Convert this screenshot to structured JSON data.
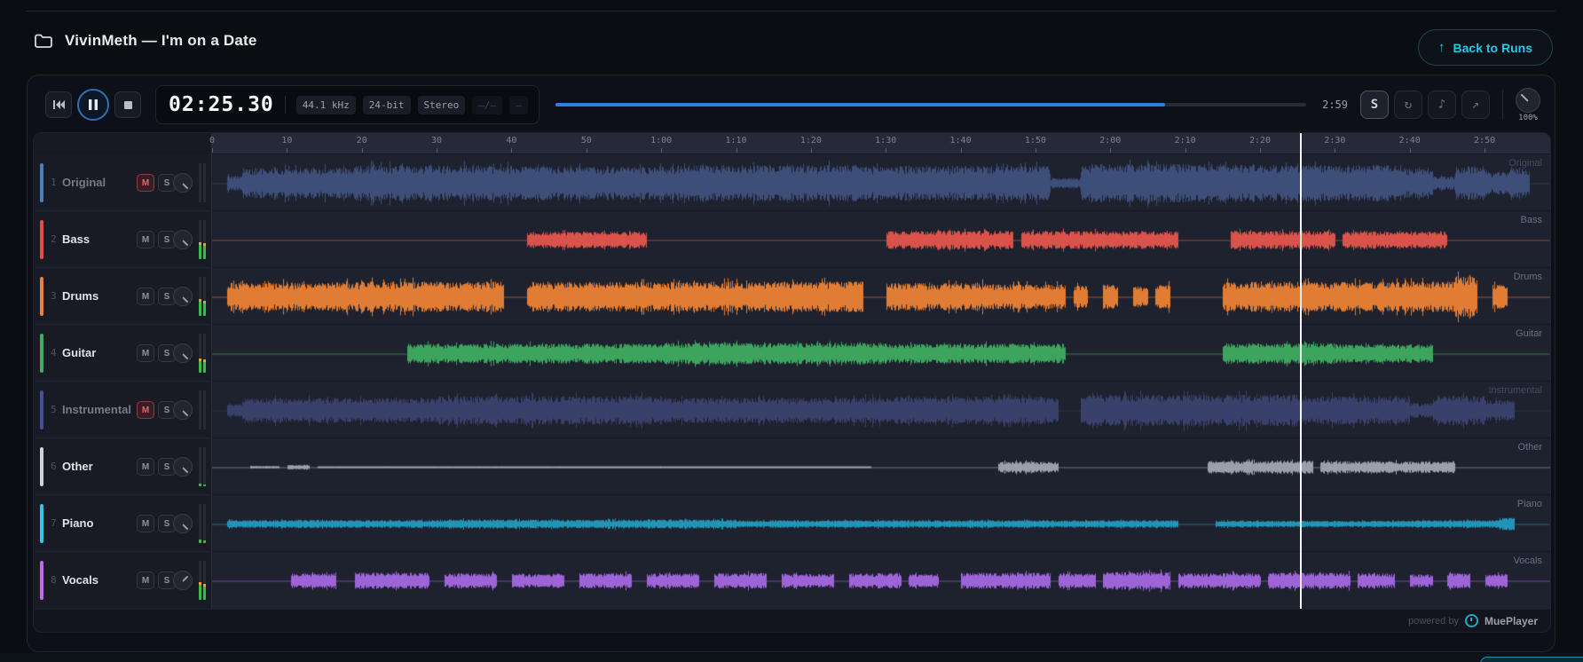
{
  "header": {
    "title": "VivinMeth — I'm on a Date",
    "back_button_label": "Back to Runs",
    "back_arrow": "↑"
  },
  "toolbar": {
    "time_display": "02:25.30",
    "duration_label": "2:59",
    "badges": {
      "sample_rate": "44.1 kHz",
      "bit_depth": "24-bit",
      "channels": "Stereo",
      "dim1": "–/–",
      "dim2": "–"
    },
    "stems_button_label": "S",
    "loop_icon": "↻",
    "note_icon": "♪",
    "export_icon": "↗",
    "zoom_percent_label": "100%",
    "progress": {
      "elapsed_seconds": 145.3,
      "duration_seconds": 179,
      "fill_color": "#2e7ee2"
    }
  },
  "labels": {
    "mute": "M",
    "solo": "S"
  },
  "timeline": {
    "duration_seconds": 179,
    "playhead_seconds": 145.3,
    "ticks": [
      {
        "t": 0,
        "label": "0"
      },
      {
        "t": 10,
        "label": "10"
      },
      {
        "t": 20,
        "label": "20"
      },
      {
        "t": 30,
        "label": "30"
      },
      {
        "t": 40,
        "label": "40"
      },
      {
        "t": 50,
        "label": "50"
      },
      {
        "t": 60,
        "label": "1:00"
      },
      {
        "t": 70,
        "label": "1:10"
      },
      {
        "t": 80,
        "label": "1:20"
      },
      {
        "t": 90,
        "label": "1:30"
      },
      {
        "t": 100,
        "label": "1:40"
      },
      {
        "t": 110,
        "label": "1:50"
      },
      {
        "t": 120,
        "label": "2:00"
      },
      {
        "t": 130,
        "label": "2:10"
      },
      {
        "t": 140,
        "label": "2:20"
      },
      {
        "t": 150,
        "label": "2:30"
      },
      {
        "t": 160,
        "label": "2:40"
      },
      {
        "t": 170,
        "label": "2:50"
      }
    ]
  },
  "tracks": [
    {
      "number": "1",
      "name": "Original",
      "bar_color": "#4d7fb5",
      "wave_color": "#3d4e79",
      "muted": true,
      "soloed": false,
      "meter_l": 0,
      "meter_r": 0,
      "knob_angle": 135,
      "segments": [
        [
          2,
          4,
          0.3
        ],
        [
          4,
          18,
          0.62
        ],
        [
          18,
          40,
          0.72
        ],
        [
          40,
          62,
          0.68
        ],
        [
          62,
          86,
          0.74
        ],
        [
          86,
          112,
          0.7
        ],
        [
          112,
          116,
          0.22
        ],
        [
          116,
          140,
          0.78
        ],
        [
          140,
          158,
          0.74
        ],
        [
          158,
          163,
          0.6
        ],
        [
          163,
          166,
          0.28
        ],
        [
          166,
          170,
          0.68
        ],
        [
          170,
          173,
          0.45
        ],
        [
          173,
          176,
          0.6
        ]
      ]
    },
    {
      "number": "2",
      "name": "Bass",
      "bar_color": "#e34c4c",
      "wave_color": "#d9534b",
      "muted": false,
      "soloed": false,
      "meter_l": 0.36,
      "meter_r": 0.33,
      "knob_angle": 135,
      "segments": [
        [
          42,
          58,
          0.34
        ],
        [
          90,
          107,
          0.38
        ],
        [
          108,
          129,
          0.36
        ],
        [
          136,
          150,
          0.36
        ],
        [
          151,
          165,
          0.34
        ]
      ]
    },
    {
      "number": "3",
      "name": "Drums",
      "bar_color": "#e8823a",
      "wave_color": "#e07c33",
      "muted": false,
      "soloed": false,
      "meter_l": 0.36,
      "meter_r": 0.32,
      "knob_angle": 135,
      "segments": [
        [
          2,
          20,
          0.58
        ],
        [
          20,
          39,
          0.62
        ],
        [
          42,
          64,
          0.6
        ],
        [
          64,
          87,
          0.62
        ],
        [
          90,
          103,
          0.56
        ],
        [
          103,
          114,
          0.5
        ],
        [
          115,
          117,
          0.45
        ],
        [
          119,
          121,
          0.5
        ],
        [
          123,
          125,
          0.42
        ],
        [
          126,
          128,
          0.5
        ],
        [
          135,
          152,
          0.6
        ],
        [
          152,
          166,
          0.62
        ],
        [
          166,
          169,
          0.82
        ],
        [
          171,
          173,
          0.5
        ]
      ]
    },
    {
      "number": "4",
      "name": "Guitar",
      "bar_color": "#43a860",
      "wave_color": "#3da45e",
      "muted": false,
      "soloed": false,
      "meter_l": 0.3,
      "meter_r": 0.27,
      "knob_angle": 135,
      "segments": [
        [
          26,
          60,
          0.4
        ],
        [
          60,
          90,
          0.44
        ],
        [
          90,
          114,
          0.4
        ],
        [
          135,
          150,
          0.42
        ],
        [
          150,
          163,
          0.38
        ]
      ]
    },
    {
      "number": "5",
      "name": "Instrumental",
      "bar_color": "#44508f",
      "wave_color": "#39406a",
      "muted": true,
      "soloed": false,
      "meter_l": 0,
      "meter_r": 0,
      "knob_angle": 135,
      "segments": [
        [
          2,
          4,
          0.25
        ],
        [
          4,
          30,
          0.5
        ],
        [
          30,
          60,
          0.58
        ],
        [
          60,
          90,
          0.52
        ],
        [
          90,
          113,
          0.56
        ],
        [
          116,
          145,
          0.64
        ],
        [
          145,
          160,
          0.58
        ],
        [
          160,
          163,
          0.3
        ],
        [
          163,
          170,
          0.6
        ],
        [
          170,
          174,
          0.42
        ]
      ]
    },
    {
      "number": "6",
      "name": "Other",
      "bar_color": "#cdd2da",
      "wave_color": "#9aa0ab",
      "muted": false,
      "soloed": false,
      "meter_l": 0.06,
      "meter_r": 0.05,
      "knob_angle": 135,
      "segments": [
        [
          5,
          9,
          0.05
        ],
        [
          10,
          13,
          0.1
        ],
        [
          14,
          60,
          0.035
        ],
        [
          60,
          88,
          0.03
        ],
        [
          105,
          113,
          0.22
        ],
        [
          133,
          147,
          0.26
        ],
        [
          148,
          166,
          0.24
        ]
      ]
    },
    {
      "number": "7",
      "name": "Piano",
      "bar_color": "#31c7de",
      "wave_color": "#2394b5",
      "muted": false,
      "soloed": false,
      "meter_l": 0.08,
      "meter_r": 0.06,
      "knob_angle": 135,
      "segments": [
        [
          2,
          30,
          0.16
        ],
        [
          30,
          70,
          0.18
        ],
        [
          70,
          129,
          0.15
        ],
        [
          134,
          160,
          0.13
        ],
        [
          160,
          172,
          0.15
        ],
        [
          172,
          174,
          0.25
        ]
      ]
    },
    {
      "number": "8",
      "name": "Vocals",
      "bar_color": "#bb6cf0",
      "wave_color": "#9d64d8",
      "muted": false,
      "soloed": false,
      "meter_l": 0.38,
      "meter_r": 0.34,
      "knob_angle": 45,
      "segments": [
        [
          10.5,
          16.5,
          0.3
        ],
        [
          19,
          29,
          0.33
        ],
        [
          31,
          38,
          0.3
        ],
        [
          40,
          47,
          0.28
        ],
        [
          49,
          56,
          0.31
        ],
        [
          58,
          65,
          0.29
        ],
        [
          67,
          74,
          0.31
        ],
        [
          76,
          83,
          0.28
        ],
        [
          85,
          92,
          0.31
        ],
        [
          93,
          97,
          0.26
        ],
        [
          100,
          112,
          0.33
        ],
        [
          113,
          118,
          0.3
        ],
        [
          119,
          128,
          0.36
        ],
        [
          129,
          140,
          0.31
        ],
        [
          141,
          152,
          0.33
        ],
        [
          153,
          158,
          0.3
        ],
        [
          160,
          163,
          0.26
        ],
        [
          165,
          168,
          0.31
        ],
        [
          170,
          173,
          0.28
        ]
      ]
    }
  ],
  "footer": {
    "powered_by": "powered by",
    "brand": "MuePlayer"
  },
  "colors": {
    "accent_cyan": "#22c7ea",
    "progress_blue": "#2e7ee2",
    "meter_green": "#35c04a",
    "meter_peak": "#e8a23c",
    "playhead": "#f2f4f6"
  }
}
